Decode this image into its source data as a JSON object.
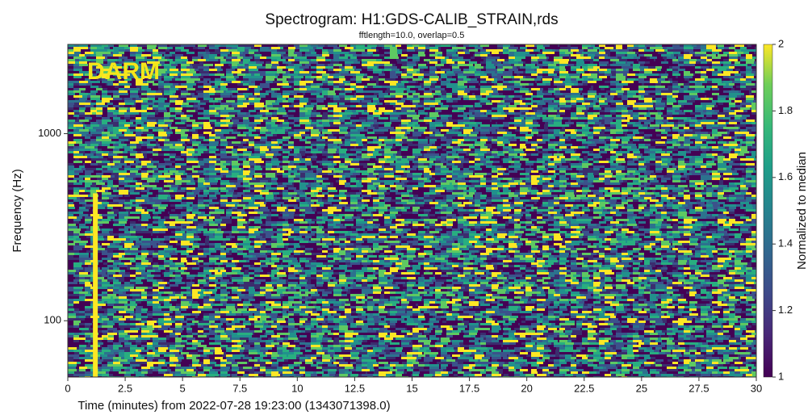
{
  "chart_data": {
    "type": "spectrogram",
    "title": "Spectrogram: H1:GDS-CALIB_STRAIN,rds",
    "subtitle": "fftlength=10.0, overlap=0.5",
    "xlabel": "Time (minutes) from 2022-07-28 19:23:00 (1343071398.0)",
    "ylabel": "Frequency (Hz)",
    "xlim": [
      0,
      30
    ],
    "xticks": [
      0,
      2.5,
      5,
      7.5,
      10,
      12.5,
      15,
      17.5,
      20,
      22.5,
      25,
      27.5,
      30
    ],
    "ylim": [
      50,
      3000
    ],
    "yticks": [
      100,
      1000
    ],
    "y_scale": "log",
    "colormap": "viridis",
    "clim": [
      1,
      2
    ],
    "cticks": [
      1,
      1.2,
      1.4,
      1.6,
      1.8,
      2
    ],
    "colorbar_label": "Normalized to median",
    "annotation": "DARM",
    "glitch": {
      "time": 1.2,
      "freq": [
        50,
        480
      ],
      "value": 2
    }
  }
}
